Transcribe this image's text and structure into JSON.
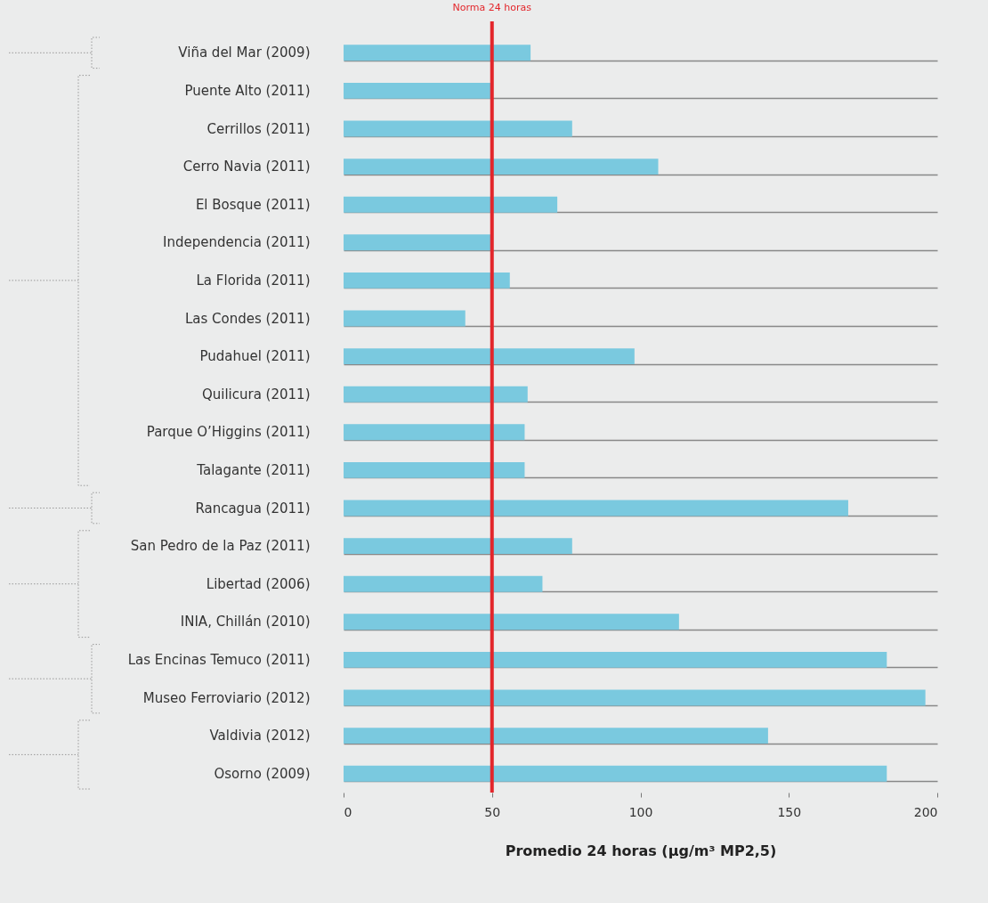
{
  "chart_data": {
    "type": "bar",
    "orientation": "horizontal",
    "xlabel": "Promedio 24 horas (µg/m³ MP2,5)",
    "categories": [
      "Viña del Mar (2009)",
      "Puente Alto (2011)",
      "Cerrillos (2011)",
      "Cerro Navia (2011)",
      "El Bosque  (2011)",
      "Independencia  (2011)",
      "La Florida (2011)",
      "Las Condes (2011)",
      "Pudahuel (2011)",
      "Quilicura (2011)",
      "Parque O’Higgins (2011)",
      "Talagante (2011)",
      "Rancagua (2011)",
      "San Pedro de la Paz (2011)",
      "Libertad (2006)",
      "INIA, Chillán (2010)",
      "Las Encinas Temuco (2011)",
      "Museo Ferroviario (2012)",
      "Valdivia (2012)",
      "Osorno (2009)"
    ],
    "values": [
      63,
      50,
      77,
      106,
      72,
      50,
      56,
      41,
      98,
      62,
      61,
      61,
      170,
      77,
      67,
      113,
      183,
      196,
      143,
      183
    ],
    "color": "#7ac9df",
    "xlim": [
      0,
      200
    ],
    "xticks": [
      0,
      50,
      100,
      150,
      200
    ],
    "grid": "y",
    "ref_lines": [
      {
        "axis": "x",
        "value": 50,
        "label": "Norma 24 horas",
        "color": "#e3262b"
      }
    ]
  }
}
